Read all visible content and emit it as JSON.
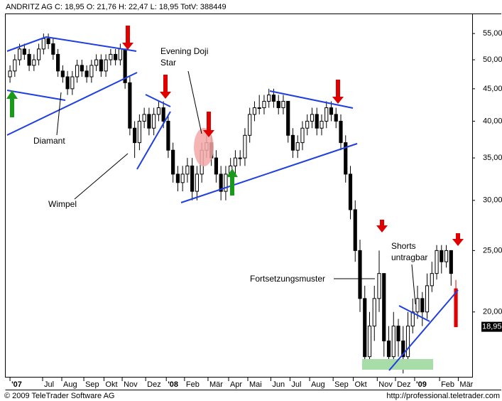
{
  "chart_data": {
    "type": "candlestick",
    "title": "ANDRITZ AG C: 18,95 O: 21,76 H: 22,47 L: 18,95 TotV: 388449",
    "copyright": "© 2009 TeleTrader Software AG",
    "url": "http://professional.teletrader.com",
    "log_scale": true,
    "up_color": "#ffffff",
    "down_color": "#000000",
    "last_color": "#e00000",
    "ylim": [
      15.8,
      59
    ],
    "yticks": [
      {
        "value": 20,
        "label": "20,00"
      },
      {
        "value": 25,
        "label": "25,00"
      },
      {
        "value": 30,
        "label": "30,00"
      },
      {
        "value": 35,
        "label": "35,00"
      },
      {
        "value": 40,
        "label": "40,00"
      },
      {
        "value": 45,
        "label": "45,00"
      },
      {
        "value": 50,
        "label": "50,00"
      },
      {
        "value": 55,
        "label": "55,00"
      }
    ],
    "last_price": {
      "value": 18.95,
      "label": "18,95"
    },
    "xlim": [
      -0.9,
      96.4
    ],
    "xticks": [
      {
        "value": 0,
        "label": "'07"
      },
      {
        "value": 6.8,
        "label": "Jul"
      },
      {
        "value": 10.8,
        "label": "Aug"
      },
      {
        "value": 15.4,
        "label": "Sep"
      },
      {
        "value": 19.6,
        "label": "Okt"
      },
      {
        "value": 23.4,
        "label": "Nov"
      },
      {
        "value": 28.3,
        "label": "Dez"
      },
      {
        "value": 32.6,
        "label": "'08"
      },
      {
        "value": 36.4,
        "label": "Feb"
      },
      {
        "value": 41.3,
        "label": "Mär"
      },
      {
        "value": 45.6,
        "label": "Apr"
      },
      {
        "value": 49.6,
        "label": "Mai"
      },
      {
        "value": 54.4,
        "label": "Jun"
      },
      {
        "value": 58.4,
        "label": "Jul"
      },
      {
        "value": 62.5,
        "label": "Aug"
      },
      {
        "value": 67.4,
        "label": "Sep"
      },
      {
        "value": 71.6,
        "label": "Okt"
      },
      {
        "value": 76.6,
        "label": "Nov"
      },
      {
        "value": 80.4,
        "label": "Dez"
      },
      {
        "value": 84.4,
        "label": "'09"
      },
      {
        "value": 89.6,
        "label": "Feb"
      },
      {
        "value": 93.5,
        "label": "Mär"
      }
    ],
    "annotations": [
      "Evening Doji",
      "Star",
      "Diamant",
      "Wimpel",
      "Fortsetzungsmuster",
      "Shorts",
      "untragbar"
    ],
    "ohlc": [
      [
        47,
        49,
        46,
        48
      ],
      [
        48,
        51,
        47,
        50
      ],
      [
        50,
        53,
        49,
        52
      ],
      [
        52,
        53,
        50,
        51
      ],
      [
        51,
        52,
        48,
        49
      ],
      [
        49,
        51,
        48,
        50
      ],
      [
        50,
        53,
        49,
        52
      ],
      [
        52,
        55,
        51,
        54
      ],
      [
        54,
        55,
        52,
        53
      ],
      [
        53,
        54,
        50,
        51
      ],
      [
        51,
        52,
        47,
        48
      ],
      [
        48,
        49,
        46,
        47
      ],
      [
        47,
        48,
        44,
        45
      ],
      [
        45,
        48,
        44,
        47
      ],
      [
        47,
        50,
        46,
        49
      ],
      [
        49,
        50,
        47,
        48
      ],
      [
        48,
        49,
        46,
        47
      ],
      [
        47,
        50,
        46,
        49
      ],
      [
        49,
        51,
        48,
        50
      ],
      [
        50,
        51,
        47,
        48
      ],
      [
        48,
        51,
        47,
        50
      ],
      [
        50,
        52,
        49,
        51
      ],
      [
        51,
        52,
        49,
        50
      ],
      [
        50,
        53,
        49,
        52
      ],
      [
        52,
        52,
        45,
        46
      ],
      [
        46,
        47,
        38,
        39
      ],
      [
        39,
        40,
        35,
        37
      ],
      [
        37,
        41,
        36,
        40
      ],
      [
        40,
        42,
        39,
        41
      ],
      [
        41,
        42,
        38,
        39
      ],
      [
        39,
        42,
        38,
        41
      ],
      [
        41,
        43,
        40,
        42
      ],
      [
        42,
        43,
        39,
        40
      ],
      [
        40,
        41,
        35,
        36
      ],
      [
        36,
        37,
        32,
        33
      ],
      [
        33,
        34,
        31,
        32
      ],
      [
        32,
        34,
        31,
        33
      ],
      [
        33,
        35,
        32,
        34
      ],
      [
        34,
        35,
        30,
        31
      ],
      [
        31,
        34,
        30,
        33
      ],
      [
        33,
        37,
        32,
        36
      ],
      [
        36,
        38,
        35,
        37
      ],
      [
        37,
        38,
        34,
        35
      ],
      [
        35,
        36,
        32,
        33
      ],
      [
        33,
        34,
        30,
        31
      ],
      [
        31,
        34,
        30,
        33
      ],
      [
        33,
        35,
        32,
        34
      ],
      [
        34,
        36,
        33,
        35
      ],
      [
        35,
        36,
        34,
        35
      ],
      [
        35,
        39,
        34,
        38
      ],
      [
        38,
        42,
        37,
        41
      ],
      [
        41,
        43,
        40,
        42
      ],
      [
        42,
        44,
        41,
        42
      ],
      [
        42,
        44,
        41,
        43
      ],
      [
        43,
        45,
        42,
        44
      ],
      [
        44,
        45,
        42,
        43
      ],
      [
        43,
        44,
        41,
        42
      ],
      [
        42,
        44,
        41,
        43
      ],
      [
        43,
        43,
        37,
        38
      ],
      [
        38,
        39,
        35,
        36
      ],
      [
        36,
        38,
        35,
        37
      ],
      [
        37,
        40,
        36,
        39
      ],
      [
        39,
        41,
        38,
        40
      ],
      [
        40,
        42,
        39,
        41
      ],
      [
        41,
        42,
        38,
        39
      ],
      [
        39,
        41,
        38,
        40
      ],
      [
        40,
        43,
        39,
        42
      ],
      [
        42,
        43,
        40,
        41
      ],
      [
        41,
        42,
        39,
        40
      ],
      [
        40,
        41,
        36,
        37
      ],
      [
        37,
        38,
        32,
        33
      ],
      [
        33,
        34,
        28,
        29
      ],
      [
        29,
        30,
        24,
        25
      ],
      [
        25,
        26,
        20,
        21
      ],
      [
        21,
        22,
        16.5,
        17
      ],
      [
        17,
        20,
        16.5,
        19
      ],
      [
        19,
        22,
        18,
        21
      ],
      [
        21,
        25,
        20,
        23
      ],
      [
        23,
        23,
        17,
        18
      ],
      [
        18,
        19,
        16.5,
        17
      ],
      [
        17,
        20,
        16.5,
        19
      ],
      [
        19,
        19.5,
        17,
        18
      ],
      [
        18,
        19,
        16,
        17
      ],
      [
        17,
        20,
        16.5,
        19
      ],
      [
        19,
        21,
        18.5,
        20
      ],
      [
        20,
        22,
        19.5,
        21
      ],
      [
        21,
        21.5,
        19,
        20
      ],
      [
        20,
        23,
        19.5,
        22
      ],
      [
        22,
        24,
        21.5,
        23
      ],
      [
        23,
        25.5,
        22.5,
        25
      ],
      [
        25,
        25.5,
        23,
        24
      ],
      [
        24,
        25.5,
        23.5,
        25
      ],
      [
        25,
        25,
        22,
        23
      ],
      [
        21.76,
        22.47,
        18.95,
        18.95
      ]
    ]
  }
}
